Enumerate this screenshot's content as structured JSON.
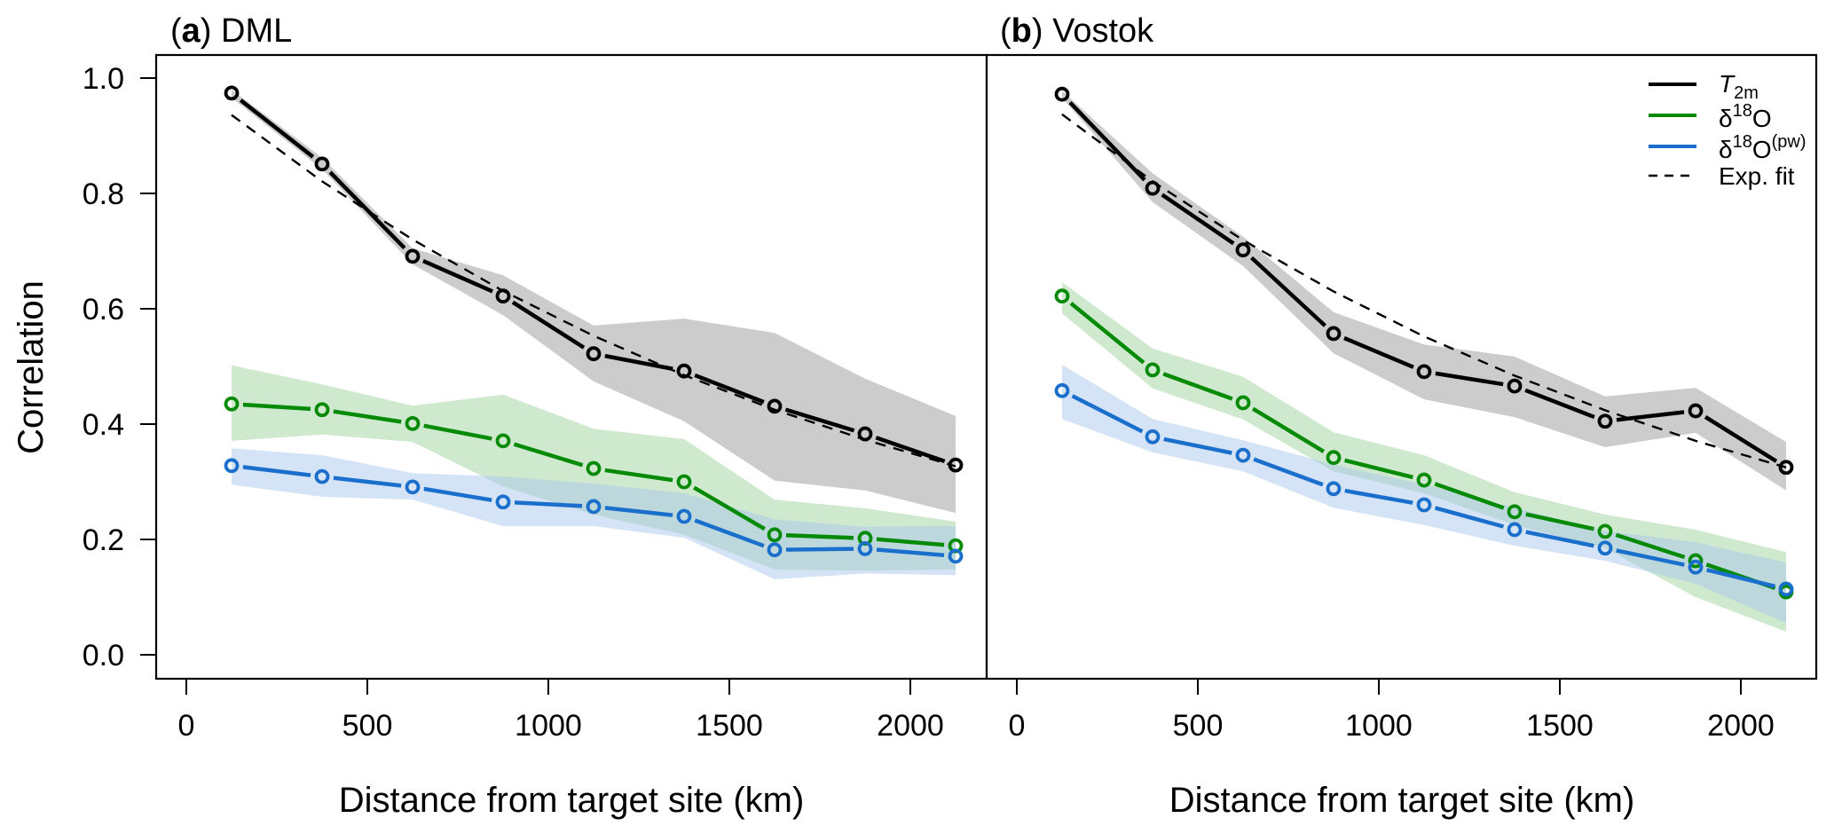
{
  "chart_data": [
    {
      "type": "line",
      "panel_label": "a",
      "title": "DML",
      "xlabel": "Distance from target site (km)",
      "ylabel": "Correlation",
      "xlim": [
        -83,
        2210
      ],
      "ylim": [
        -0.04,
        1.04
      ],
      "xticks": [
        0,
        500,
        1000,
        1500,
        2000
      ],
      "xtick_labels": [
        "0",
        "500",
        "1000",
        "1500",
        "2000"
      ],
      "yticks": [
        0.0,
        0.2,
        0.4,
        0.6,
        0.8,
        1.0
      ],
      "ytick_labels": [
        "0.0",
        "0.2",
        "0.4",
        "0.6",
        "0.8",
        "1.0"
      ],
      "grid": false,
      "x": [
        125,
        375,
        625,
        875,
        1125,
        1375,
        1625,
        1875,
        2125
      ],
      "series": [
        {
          "name": "T2m",
          "color": "#000000",
          "band_color": "#cccccc",
          "values": [
            0.974,
            0.851,
            0.691,
            0.622,
            0.522,
            0.492,
            0.431,
            0.383,
            0.329
          ],
          "upper": [
            0.98,
            0.862,
            0.705,
            0.658,
            0.571,
            0.583,
            0.558,
            0.479,
            0.414
          ],
          "lower": [
            0.966,
            0.842,
            0.677,
            0.589,
            0.474,
            0.405,
            0.302,
            0.285,
            0.246
          ]
        },
        {
          "name": "δ18O",
          "color": "#058a05",
          "band_color": "#9fd39f",
          "values": [
            0.435,
            0.425,
            0.401,
            0.371,
            0.323,
            0.3,
            0.208,
            0.202,
            0.189
          ],
          "upper": [
            0.502,
            0.469,
            0.432,
            0.451,
            0.392,
            0.374,
            0.269,
            0.254,
            0.231
          ],
          "lower": [
            0.371,
            0.382,
            0.369,
            0.292,
            0.243,
            0.208,
            0.148,
            0.146,
            0.148
          ]
        },
        {
          "name": "δ18O(pw)",
          "color": "#1a6fcc",
          "band_color": "#a9c8ec",
          "values": [
            0.328,
            0.309,
            0.291,
            0.265,
            0.257,
            0.24,
            0.182,
            0.184,
            0.171
          ],
          "upper": [
            0.358,
            0.346,
            0.315,
            0.309,
            0.297,
            0.28,
            0.235,
            0.222,
            0.223
          ],
          "lower": [
            0.295,
            0.274,
            0.269,
            0.223,
            0.223,
            0.203,
            0.131,
            0.141,
            0.138
          ]
        }
      ],
      "fit": {
        "name": "Exp. fit",
        "values": [
          0.936,
          0.821,
          0.72,
          0.631,
          0.553,
          0.485,
          0.425,
          0.373,
          0.327
        ]
      }
    },
    {
      "type": "line",
      "panel_label": "b",
      "title": "Vostok",
      "xlabel": "Distance from target site (km)",
      "ylabel": "",
      "xlim": [
        -83,
        2210
      ],
      "ylim": [
        -0.04,
        1.04
      ],
      "xticks": [
        0,
        500,
        1000,
        1500,
        2000
      ],
      "xtick_labels": [
        "0",
        "500",
        "1000",
        "1500",
        "2000"
      ],
      "grid": false,
      "x": [
        125,
        375,
        625,
        875,
        1125,
        1375,
        1625,
        1875,
        2125
      ],
      "series": [
        {
          "name": "T2m",
          "color": "#000000",
          "band_color": "#cccccc",
          "values": [
            0.972,
            0.809,
            0.702,
            0.557,
            0.491,
            0.466,
            0.405,
            0.423,
            0.325
          ],
          "upper": [
            0.978,
            0.835,
            0.725,
            0.594,
            0.538,
            0.517,
            0.448,
            0.463,
            0.369
          ],
          "lower": [
            0.966,
            0.785,
            0.674,
            0.523,
            0.443,
            0.412,
            0.36,
            0.385,
            0.285
          ]
        },
        {
          "name": "δ18O",
          "color": "#058a05",
          "band_color": "#9fd39f",
          "values": [
            0.622,
            0.494,
            0.437,
            0.342,
            0.303,
            0.248,
            0.214,
            0.163,
            0.109
          ],
          "upper": [
            0.646,
            0.531,
            0.482,
            0.386,
            0.346,
            0.282,
            0.243,
            0.217,
            0.178
          ],
          "lower": [
            0.592,
            0.462,
            0.408,
            0.318,
            0.28,
            0.225,
            0.185,
            0.1,
            0.04
          ]
        },
        {
          "name": "δ18O(pw)",
          "color": "#1a6fcc",
          "band_color": "#a9c8ec",
          "values": [
            0.458,
            0.378,
            0.346,
            0.288,
            0.26,
            0.217,
            0.185,
            0.152,
            0.114
          ],
          "upper": [
            0.503,
            0.409,
            0.372,
            0.33,
            0.295,
            0.255,
            0.215,
            0.195,
            0.16
          ],
          "lower": [
            0.409,
            0.351,
            0.318,
            0.255,
            0.225,
            0.189,
            0.163,
            0.123,
            0.055
          ]
        }
      ],
      "fit": {
        "name": "Exp. fit",
        "values": [
          0.937,
          0.821,
          0.719,
          0.63,
          0.552,
          0.484,
          0.424,
          0.371,
          0.325
        ]
      },
      "legend": {
        "placement": "top-right",
        "entries": [
          {
            "label": "T",
            "sub": "2m",
            "sup": "",
            "prefix": "",
            "italic": true,
            "color": "#000000",
            "style": "solid"
          },
          {
            "label": "O",
            "sub": "",
            "sup": "18",
            "prefix": "δ",
            "suffix_sup": "",
            "italic": false,
            "color": "#058a05",
            "style": "solid"
          },
          {
            "label": "O",
            "sub": "",
            "sup": "18",
            "prefix": "δ",
            "suffix_sup": "(pw)",
            "italic": false,
            "color": "#1a6fcc",
            "style": "solid"
          },
          {
            "label": "Exp. fit",
            "sub": "",
            "sup": "",
            "prefix": "",
            "italic": false,
            "color": "#000000",
            "style": "dashed"
          }
        ]
      }
    }
  ]
}
